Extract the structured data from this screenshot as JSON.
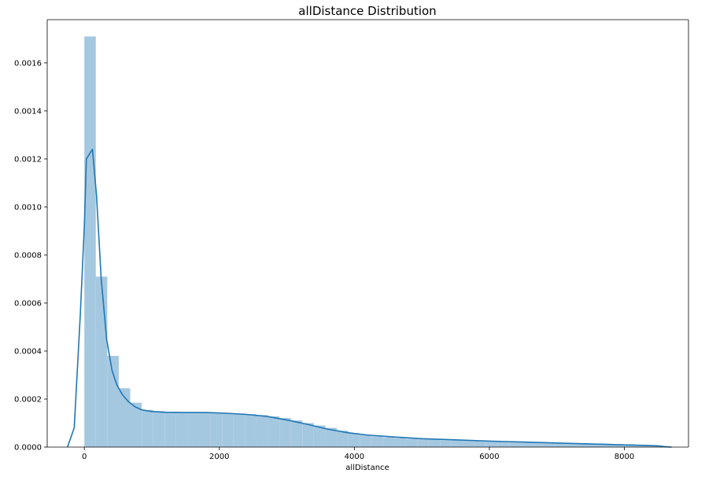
{
  "chart_data": {
    "type": "bar",
    "title": "allDistance Distribution",
    "xlabel": "allDistance",
    "ylabel": "",
    "xlim": [
      -550,
      8950
    ],
    "ylim": [
      0,
      0.00178
    ],
    "xticks": [
      0,
      2000,
      4000,
      6000,
      8000
    ],
    "yticks": [
      0,
      0.0002,
      0.0004,
      0.0006,
      0.0008,
      0.001,
      0.0012,
      0.0014,
      0.0016
    ],
    "ytick_labels": [
      "0.0000",
      "0.0002",
      "0.0004",
      "0.0006",
      "0.0008",
      "0.0010",
      "0.0012",
      "0.0014",
      "0.0016"
    ],
    "grid": false,
    "colors": {
      "histogram": "#a5c8e1",
      "kde": "#1f77b4"
    },
    "series": [
      {
        "type": "histogram",
        "bin_edges": [
          0,
          170,
          340,
          510,
          680,
          850,
          1020,
          1190,
          1360,
          1530,
          1700,
          1870,
          2040,
          2210,
          2380,
          2550,
          2720,
          2890,
          3060,
          3230,
          3400,
          3570,
          3740,
          3910,
          4080,
          4250,
          4420,
          4590,
          4760,
          4930,
          5100,
          5270,
          5440,
          5610,
          5780,
          5950,
          6120,
          6290,
          6460,
          6630,
          6800,
          6970,
          7140,
          7310,
          7480,
          7650,
          7820,
          7990,
          8160,
          8330,
          8500
        ],
        "values": [
          0.00171,
          0.00071,
          0.00038,
          0.000245,
          0.000185,
          0.000155,
          0.00015,
          0.000147,
          0.000145,
          0.000144,
          0.000144,
          0.000143,
          0.000142,
          0.00014,
          0.000137,
          0.000133,
          0.000128,
          0.000121,
          0.000111,
          0.0001,
          9e-05,
          8e-05,
          6.8e-05,
          5.8e-05,
          5e-05,
          4.5e-05,
          4.1e-05,
          3.8e-05,
          3.5e-05,
          3.3e-05,
          3.1e-05,
          2.9e-05,
          2.8e-05,
          2.6e-05,
          2.5e-05,
          2.4e-05,
          2.3e-05,
          2.2e-05,
          2.1e-05,
          2e-05,
          1.9e-05,
          1.8e-05,
          1.7e-05,
          1.6e-05,
          1.5e-05,
          1.4e-05,
          1.3e-05,
          1.2e-05,
          1e-05,
          8e-06
        ]
      },
      {
        "type": "kde",
        "x": [
          -250,
          -150,
          -60,
          0,
          30,
          120,
          180,
          250,
          330,
          410,
          480,
          560,
          650,
          750,
          850,
          1000,
          1200,
          1500,
          1800,
          2100,
          2400,
          2700,
          3000,
          3300,
          3600,
          3900,
          4200,
          4600,
          5000,
          5500,
          6000,
          6500,
          7000,
          7500,
          8000,
          8300,
          8500,
          8600,
          8700
        ],
        "y": [
          0,
          8e-05,
          0.00055,
          0.00092,
          0.0012,
          0.00124,
          0.00105,
          0.0007,
          0.00045,
          0.00032,
          0.00026,
          0.00022,
          0.00019,
          0.000168,
          0.000155,
          0.000148,
          0.000145,
          0.000144,
          0.000144,
          0.000141,
          0.000136,
          0.000128,
          0.000113,
          9.5e-05,
          7.5e-05,
          6e-05,
          5e-05,
          4.2e-05,
          3.5e-05,
          3e-05,
          2.5e-05,
          2.1e-05,
          1.7e-05,
          1.3e-05,
          9e-06,
          7e-06,
          5e-06,
          2e-06,
          0
        ]
      }
    ]
  }
}
